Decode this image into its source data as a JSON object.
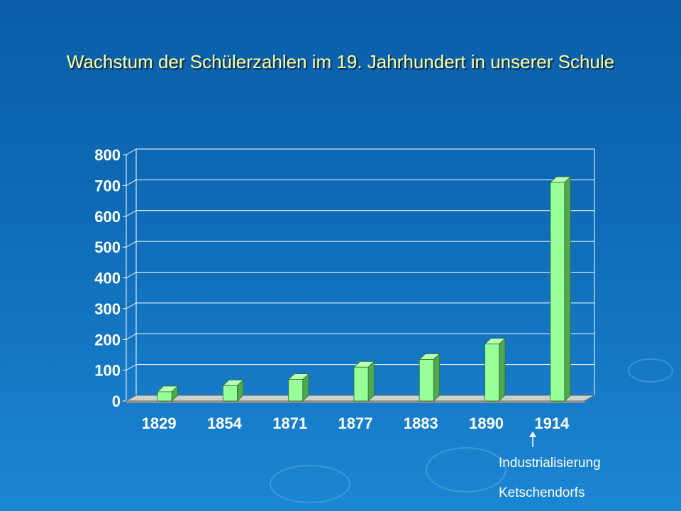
{
  "slide": {
    "title": "Wachstum der Schülerzahlen im 19. Jahrhundert in unserer Schule",
    "annotation_line1": "Industrialisierung",
    "annotation_line2": "Ketschendorfs"
  },
  "colors": {
    "bar_front": "#99ff99",
    "bar_top": "#b8ffb8",
    "bar_side": "#4fa84f",
    "axis_text": "#ffffff",
    "title_text": "#ffff9a"
  },
  "chart_data": {
    "type": "bar",
    "categories": [
      "1829",
      "1854",
      "1871",
      "1877",
      "1883",
      "1890",
      "1914"
    ],
    "values": [
      30,
      50,
      70,
      110,
      135,
      185,
      710
    ],
    "ylim": [
      0,
      800
    ],
    "yticks": [
      0,
      100,
      200,
      300,
      400,
      500,
      600,
      700,
      800
    ],
    "grid": true,
    "three_d": true
  }
}
